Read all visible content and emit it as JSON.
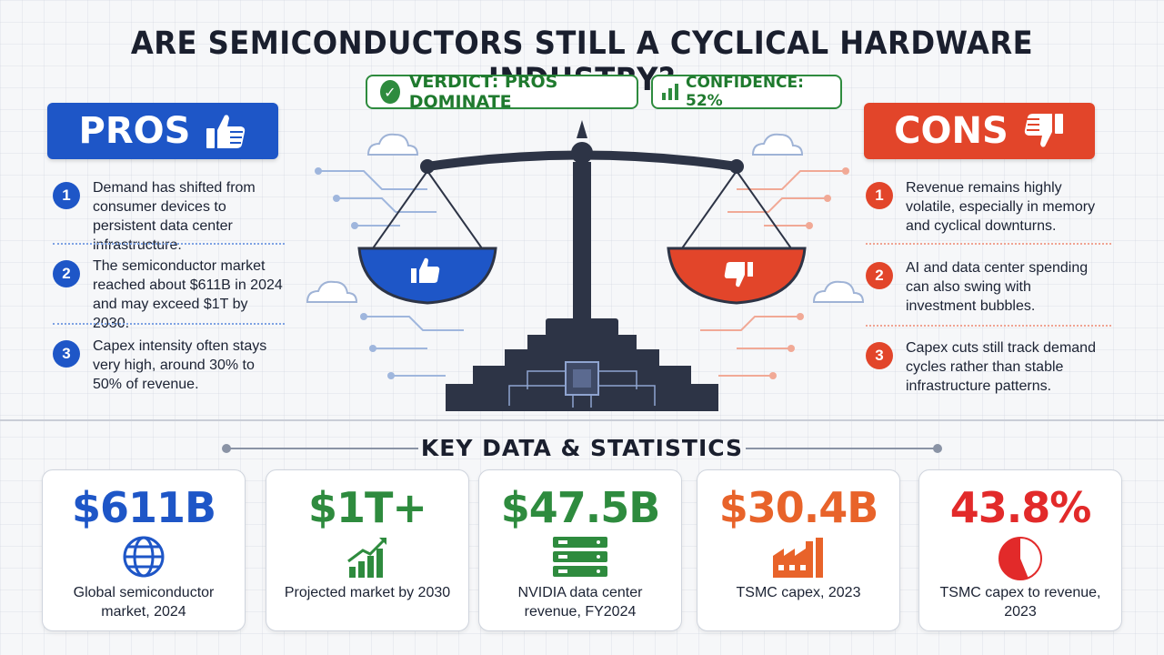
{
  "title": "ARE SEMICONDUCTORS STILL A CYCLICAL HARDWARE INDUSTRY?",
  "verdict": {
    "label": "VERDICT: PROS DOMINATE",
    "color": "#2e8b3e"
  },
  "confidence": {
    "label": "CONFIDENCE: 52%",
    "value_percent": 52
  },
  "pros": {
    "header": "PROS",
    "color": "#1e56c7",
    "icon": "thumbs-up-icon",
    "items": [
      {
        "num": "1",
        "text": "Demand has shifted from consumer devices to persistent data center infrastructure."
      },
      {
        "num": "2",
        "text": "The semiconductor market reached about $611B in 2024 and may exceed $1T by 2030."
      },
      {
        "num": "3",
        "text": "Capex intensity often stays very high, around 30% to 50% of revenue."
      }
    ]
  },
  "cons": {
    "header": "CONS",
    "color": "#e2452a",
    "icon": "thumbs-down-icon",
    "items": [
      {
        "num": "1",
        "text": "Revenue remains highly volatile, especially in memory and cyclical downturns."
      },
      {
        "num": "2",
        "text": "AI and data center spending can also swing with investment bubbles."
      },
      {
        "num": "3",
        "text": "Capex cuts still track demand cycles rather than stable infrastructure patterns."
      }
    ]
  },
  "stats": {
    "heading": "KEY DATA & STATISTICS",
    "cards": [
      {
        "value": "$611B",
        "label": "Global semiconductor market, 2024",
        "color": "#1e56c7",
        "icon": "globe-icon"
      },
      {
        "value": "$1T+",
        "label": "Projected market by 2030",
        "color": "#2e8b3e",
        "icon": "growth-chart-icon"
      },
      {
        "value": "$47.5B",
        "label": "NVIDIA data center revenue, FY2024",
        "color": "#2e8b3e",
        "icon": "server-icon"
      },
      {
        "value": "$30.4B",
        "label": "TSMC capex, 2023",
        "color": "#e8632a",
        "icon": "factory-icon"
      },
      {
        "value": "43.8%",
        "label": "TSMC capex to revenue, 2023",
        "color": "#e22a2a",
        "icon": "pie-chart-icon",
        "fraction": 0.438
      }
    ]
  }
}
